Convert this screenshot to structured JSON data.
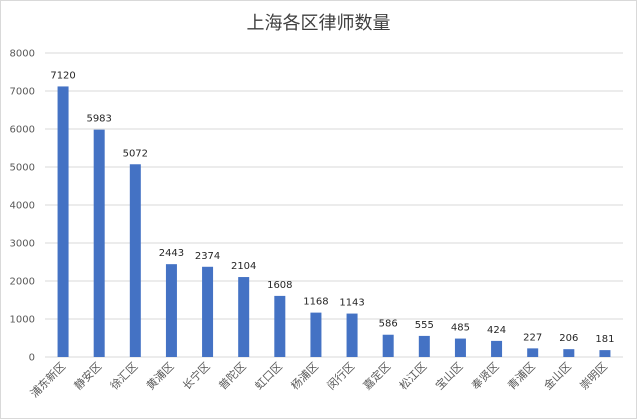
{
  "chart_data": {
    "type": "bar",
    "title": "上海各区律师数量",
    "categories": [
      "浦东新区",
      "静安区",
      "徐汇区",
      "黄浦区",
      "长宁区",
      "普陀区",
      "虹口区",
      "杨浦区",
      "闵行区",
      "嘉定区",
      "松江区",
      "宝山区",
      "奉贤区",
      "青浦区",
      "金山区",
      "崇明区"
    ],
    "values": [
      7120,
      5983,
      5072,
      2443,
      2374,
      2104,
      1608,
      1168,
      1143,
      586,
      555,
      485,
      424,
      227,
      206,
      181
    ],
    "yticks": [
      0,
      1000,
      2000,
      3000,
      4000,
      5000,
      6000,
      7000,
      8000
    ],
    "ylim": [
      0,
      8000
    ],
    "xlabel": "",
    "ylabel": "",
    "grid": true,
    "legend": "none",
    "bar_color": "#4472C4",
    "grid_color": "#d9d9d9"
  }
}
